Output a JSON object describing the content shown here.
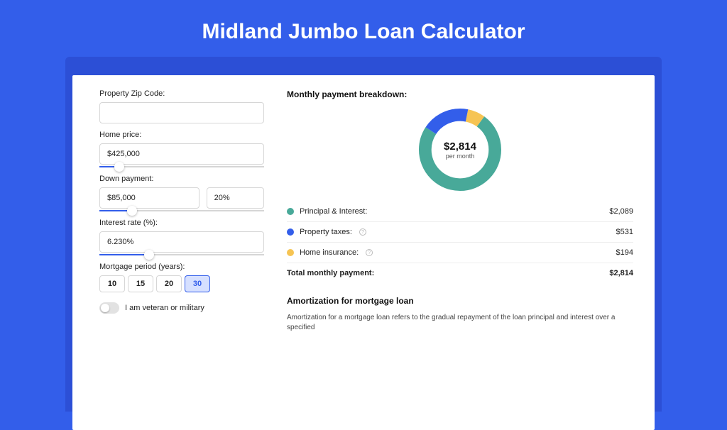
{
  "page_title": "Midland Jumbo Loan Calculator",
  "colors": {
    "page_bg": "#335eea",
    "outer_card_bg": "#2c4fd6",
    "card_bg": "#ffffff",
    "accent": "#335eea"
  },
  "form": {
    "zip": {
      "label": "Property Zip Code:",
      "value": ""
    },
    "home_price": {
      "label": "Home price:",
      "value": "$425,000",
      "slider_percent": 12
    },
    "down_payment": {
      "label": "Down payment:",
      "amount": "$85,000",
      "percent": "20%",
      "slider_percent": 20
    },
    "interest_rate": {
      "label": "Interest rate (%):",
      "value": "6.230%",
      "slider_percent": 30
    },
    "mortgage_period": {
      "label": "Mortgage period (years):",
      "options": [
        "10",
        "15",
        "20",
        "30"
      ],
      "selected": "30"
    },
    "veteran_toggle": {
      "label": "I am veteran or military",
      "on": false
    }
  },
  "breakdown": {
    "title": "Monthly payment breakdown:",
    "donut": {
      "center_value": "$2,814",
      "center_sub": "per month",
      "slices": [
        {
          "label": "Principal & Interest",
          "value": 2089,
          "color": "#48a999"
        },
        {
          "label": "Property taxes",
          "value": 531,
          "color": "#335eea"
        },
        {
          "label": "Home insurance",
          "value": 194,
          "color": "#f6c453"
        }
      ],
      "stroke_width": 18
    },
    "rows": [
      {
        "dot_color": "#48a999",
        "label": "Principal & Interest:",
        "info": false,
        "value": "$2,089"
      },
      {
        "dot_color": "#335eea",
        "label": "Property taxes:",
        "info": true,
        "value": "$531"
      },
      {
        "dot_color": "#f6c453",
        "label": "Home insurance:",
        "info": true,
        "value": "$194"
      }
    ],
    "total": {
      "label": "Total monthly payment:",
      "value": "$2,814"
    }
  },
  "amortization": {
    "title": "Amortization for mortgage loan",
    "text": "Amortization for a mortgage loan refers to the gradual repayment of the loan principal and interest over a specified"
  }
}
